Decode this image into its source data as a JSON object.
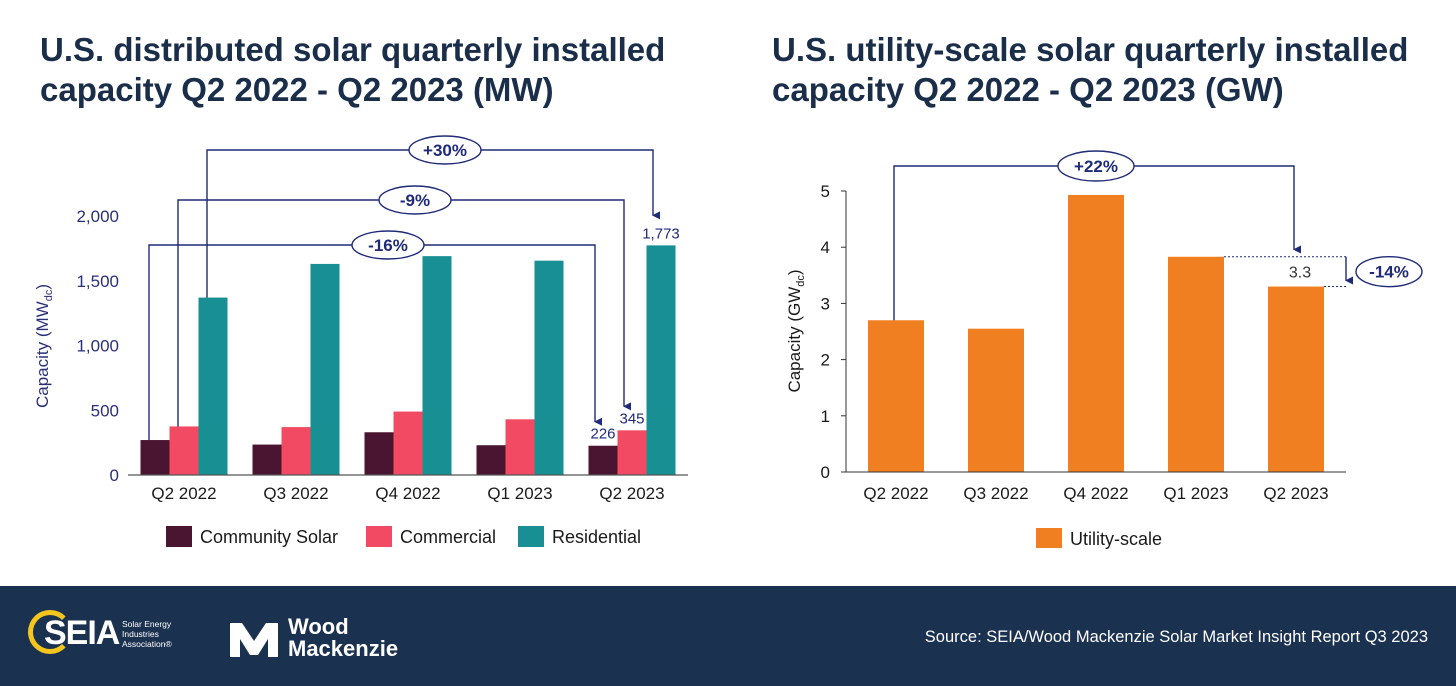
{
  "left_chart_title": "U.S. distributed solar quarterly installed capacity Q2 2022 - Q2 2023 (MW)",
  "right_chart_title": "U.S. utility-scale solar quarterly installed capacity Q2 2022 - Q2 2023 (GW)",
  "colors": {
    "title": "#1a2e4a",
    "axis_text": "#2a2f7a",
    "annotation": "#1f2a78",
    "community_solar": "#4a1530",
    "commercial": "#f24a62",
    "residential": "#178f93",
    "utility_scale": "#f07f22",
    "footer_bg": "#1b3150"
  },
  "chart_data": [
    {
      "type": "bar",
      "title": "U.S. distributed solar quarterly installed capacity Q2 2022 - Q2 2023 (MW)",
      "categories": [
        "Q2 2022",
        "Q3 2022",
        "Q4 2022",
        "Q1 2023",
        "Q2 2023"
      ],
      "series": [
        {
          "name": "Community Solar",
          "values": [
            270,
            235,
            330,
            230,
            226
          ]
        },
        {
          "name": "Commercial",
          "values": [
            375,
            370,
            490,
            430,
            345
          ]
        },
        {
          "name": "Residential",
          "values": [
            1370,
            1630,
            1690,
            1655,
            1773
          ]
        }
      ],
      "ylabel": "Capacity (MW",
      "ylabel_sub": "dc",
      "ylabel_end": ")",
      "ylim": [
        0,
        2000
      ],
      "yticks": [
        0,
        500,
        1000,
        1500,
        2000
      ],
      "ytick_labels": [
        "0",
        "500",
        "1,000",
        "1,500",
        "2,000"
      ],
      "data_labels": [
        {
          "series": 0,
          "index": 4,
          "text": "226"
        },
        {
          "series": 1,
          "index": 4,
          "text": "345"
        },
        {
          "series": 2,
          "index": 4,
          "text": "1,773"
        }
      ],
      "annotations": [
        {
          "text": "+30%",
          "series": 2,
          "from": 0,
          "to": 4
        },
        {
          "text": "-9%",
          "series": 1,
          "from": 0,
          "to": 4
        },
        {
          "text": "-16%",
          "series": 0,
          "from": 0,
          "to": 4
        }
      ],
      "legend": [
        "Community Solar",
        "Commercial",
        "Residential"
      ],
      "legend_position": "bottom"
    },
    {
      "type": "bar",
      "title": "U.S. utility-scale solar quarterly installed capacity Q2 2022 - Q2 2023 (GW)",
      "categories": [
        "Q2 2022",
        "Q3 2022",
        "Q4 2022",
        "Q1 2023",
        "Q2 2023"
      ],
      "series": [
        {
          "name": "Utility-scale",
          "values": [
            2.7,
            2.55,
            4.93,
            3.83,
            3.3
          ]
        }
      ],
      "ylabel": "Capacity (GW",
      "ylabel_sub": "dc",
      "ylabel_end": ")",
      "ylim": [
        0,
        5
      ],
      "yticks": [
        0,
        1,
        2,
        3,
        4,
        5
      ],
      "ytick_labels": [
        "0",
        "1",
        "2",
        "3",
        "4",
        "5"
      ],
      "data_labels": [
        {
          "series": 0,
          "index": 4,
          "text": "3.3"
        }
      ],
      "annotations": [
        {
          "text": "+22%",
          "series": 0,
          "from": 0,
          "to": 4
        },
        {
          "text": "-14%",
          "series": 0,
          "from": 3,
          "to": 4
        }
      ],
      "legend": [
        "Utility-scale"
      ],
      "legend_position": "bottom"
    }
  ],
  "footer": {
    "seia_logo_text": "SEIA",
    "seia_subtext": "Solar Energy Industries Association®",
    "wm_line1": "Wood",
    "wm_line2": "Mackenzie",
    "source": "Source: SEIA/Wood Mackenzie Solar Market Insight Report Q3 2023"
  }
}
